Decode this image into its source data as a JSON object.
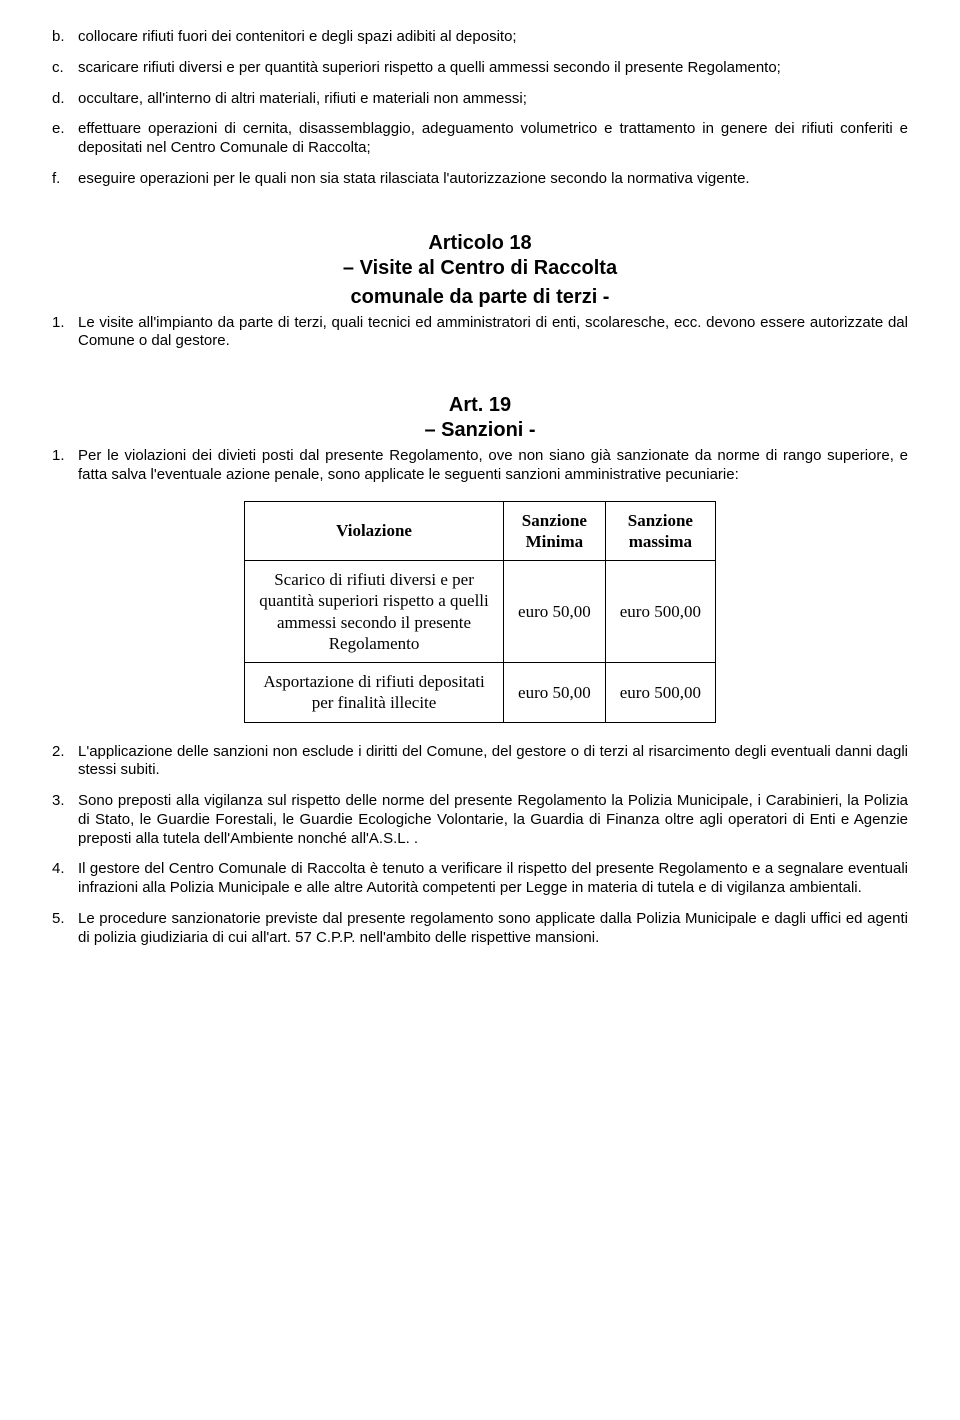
{
  "letters": {
    "b": {
      "marker": "b.",
      "text": "collocare rifiuti fuori dei contenitori e degli spazi adibiti al deposito;"
    },
    "c": {
      "marker": "c.",
      "text": "scaricare rifiuti diversi e per quantità superiori rispetto a quelli ammessi secondo il presente Regolamento;"
    },
    "d": {
      "marker": "d.",
      "text": "occultare, all'interno di altri materiali, rifiuti e materiali non ammessi;"
    },
    "e": {
      "marker": "e.",
      "text": "effettuare operazioni di cernita, disassemblaggio, adeguamento volumetrico e trattamento in genere dei rifiuti conferiti e depositati nel Centro Comunale di Raccolta;"
    },
    "f": {
      "marker": "f.",
      "text": "eseguire operazioni per le quali non sia stata rilasciata l'autorizzazione secondo la normativa vigente."
    }
  },
  "art18": {
    "title": "Articolo 18",
    "subtitle1": "– Visite al Centro di Raccolta",
    "subtitle2": "comunale da parte di terzi -",
    "p1_marker": "1.",
    "p1": "Le visite all'impianto da parte di terzi, quali tecnici ed amministratori di enti, scolaresche, ecc. devono essere autorizzate dal Comune o dal gestore."
  },
  "art19": {
    "title": "Art. 19",
    "subtitle": "– Sanzioni -",
    "p1_marker": "1.",
    "p1": "Per le violazioni dei divieti posti dal presente Regolamento, ove non siano già sanzionate da norme di rango superiore, e fatta salva l'eventuale azione penale, sono applicate le seguenti sanzioni amministrative pecuniarie:",
    "table": {
      "h1": "Violazione",
      "h2a": "Sanzione",
      "h2b": "Minima",
      "h3a": "Sanzione",
      "h3b": "massima",
      "r1c1": "Scarico di rifiuti diversi e per quantità superiori rispetto a quelli ammessi secondo il presente Regolamento",
      "r1c2": "euro 50,00",
      "r1c3": "euro 500,00",
      "r2c1": "Asportazione di rifiuti depositati per finalità illecite",
      "r2c2": "euro 50,00",
      "r2c3": "euro 500,00"
    },
    "p2_marker": "2.",
    "p2": "L'applicazione delle sanzioni non esclude i diritti del Comune, del gestore o di terzi al risarcimento degli eventuali danni dagli stessi subiti.",
    "p3_marker": "3.",
    "p3": "Sono preposti alla vigilanza sul rispetto delle norme del presente Regolamento la Polizia Municipale, i Carabinieri, la Polizia di Stato, le Guardie Forestali, le Guardie Ecologiche Volontarie, la Guardia di Finanza oltre agli operatori di Enti e Agenzie preposti alla tutela dell'Ambiente nonché all'A.S.L. .",
    "p4_marker": "4.",
    "p4": "Il gestore del Centro Comunale di Raccolta è tenuto a verificare il rispetto del presente Regolamento e a segnalare eventuali infrazioni alla Polizia Municipale e alle altre Autorità competenti per Legge in materia di tutela e di vigilanza ambientali.",
    "p5_marker": "5.",
    "p5": "Le procedure sanzionatorie previste dal presente regolamento sono applicate dalla Polizia Municipale e dagli uffici ed agenti di polizia giudiziaria di cui all'art. 57 C.P.P. nell'ambito delle rispettive mansioni."
  }
}
